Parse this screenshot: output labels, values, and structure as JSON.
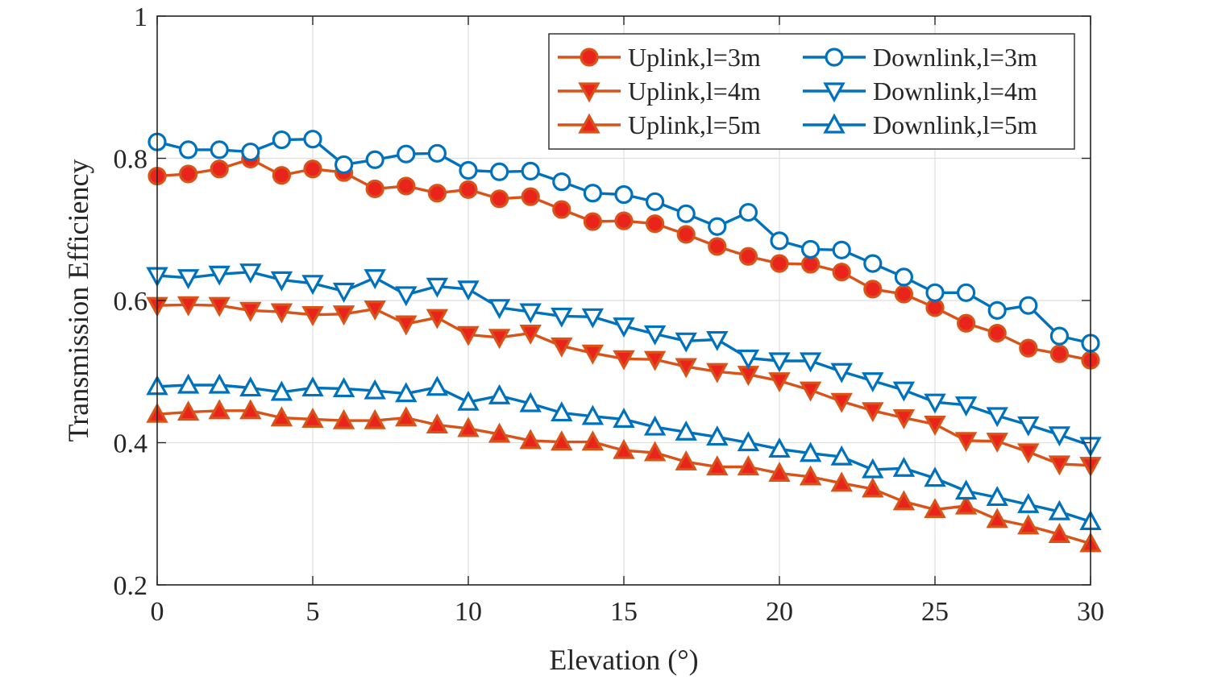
{
  "chart_data": {
    "type": "line",
    "title": "",
    "xlabel": "Elevation (°)",
    "ylabel": "Transmission Efficiency",
    "xlim": [
      0,
      30
    ],
    "ylim": [
      0.2,
      1
    ],
    "xticks": [
      0,
      5,
      10,
      15,
      20,
      25,
      30
    ],
    "xtick_labels": [
      "0",
      "5",
      "10",
      "15",
      "20",
      "25",
      "30"
    ],
    "yticks": [
      0.2,
      0.4,
      0.6,
      0.8,
      1
    ],
    "ytick_labels": [
      "0.2",
      "0.4",
      "0.6",
      "0.8",
      "1"
    ],
    "grid": true,
    "legend_position": "top-right",
    "x": [
      0,
      1,
      2,
      3,
      4,
      5,
      6,
      7,
      8,
      9,
      10,
      11,
      12,
      13,
      14,
      15,
      16,
      17,
      18,
      19,
      20,
      21,
      22,
      23,
      24,
      25,
      26,
      27,
      28,
      29,
      30
    ],
    "series": [
      {
        "name": "Uplink,l=3m",
        "color": "#D95319",
        "marker": "circle",
        "filled": true,
        "values": [
          0.775,
          0.778,
          0.785,
          0.799,
          0.776,
          0.785,
          0.78,
          0.757,
          0.761,
          0.751,
          0.756,
          0.743,
          0.746,
          0.728,
          0.711,
          0.712,
          0.708,
          0.693,
          0.676,
          0.662,
          0.652,
          0.651,
          0.64,
          0.616,
          0.609,
          0.59,
          0.568,
          0.554,
          0.533,
          0.525,
          0.516
        ]
      },
      {
        "name": "Uplink,l=4m",
        "color": "#D95319",
        "marker": "triangle-down",
        "filled": true,
        "values": [
          0.593,
          0.594,
          0.593,
          0.586,
          0.584,
          0.58,
          0.581,
          0.588,
          0.567,
          0.576,
          0.552,
          0.548,
          0.554,
          0.536,
          0.526,
          0.518,
          0.517,
          0.507,
          0.5,
          0.496,
          0.487,
          0.474,
          0.458,
          0.445,
          0.435,
          0.426,
          0.403,
          0.402,
          0.387,
          0.37,
          0.368
        ]
      },
      {
        "name": "Uplink,l=5m",
        "color": "#D95319",
        "marker": "triangle-up",
        "filled": true,
        "values": [
          0.44,
          0.443,
          0.445,
          0.445,
          0.435,
          0.433,
          0.431,
          0.431,
          0.435,
          0.425,
          0.42,
          0.412,
          0.403,
          0.401,
          0.401,
          0.389,
          0.386,
          0.373,
          0.366,
          0.366,
          0.357,
          0.352,
          0.343,
          0.335,
          0.317,
          0.306,
          0.311,
          0.292,
          0.283,
          0.271,
          0.258
        ]
      },
      {
        "name": "Downlink,l=3m",
        "color": "#0072BD",
        "marker": "circle",
        "filled": false,
        "values": [
          0.823,
          0.812,
          0.812,
          0.809,
          0.826,
          0.827,
          0.791,
          0.798,
          0.806,
          0.807,
          0.783,
          0.781,
          0.782,
          0.767,
          0.751,
          0.749,
          0.739,
          0.722,
          0.704,
          0.724,
          0.684,
          0.672,
          0.671,
          0.652,
          0.633,
          0.611,
          0.611,
          0.586,
          0.593,
          0.55,
          0.54
        ]
      },
      {
        "name": "Downlink,l=4m",
        "color": "#0072BD",
        "marker": "triangle-down",
        "filled": false,
        "values": [
          0.635,
          0.632,
          0.637,
          0.64,
          0.629,
          0.624,
          0.613,
          0.632,
          0.608,
          0.62,
          0.616,
          0.59,
          0.584,
          0.578,
          0.577,
          0.564,
          0.553,
          0.543,
          0.545,
          0.519,
          0.515,
          0.515,
          0.5,
          0.487,
          0.474,
          0.457,
          0.453,
          0.438,
          0.425,
          0.411,
          0.396
        ]
      },
      {
        "name": "Downlink,l=5m",
        "color": "#0072BD",
        "marker": "triangle-up",
        "filled": false,
        "values": [
          0.479,
          0.481,
          0.481,
          0.477,
          0.471,
          0.477,
          0.476,
          0.473,
          0.469,
          0.478,
          0.457,
          0.466,
          0.455,
          0.442,
          0.437,
          0.433,
          0.422,
          0.415,
          0.408,
          0.4,
          0.391,
          0.385,
          0.38,
          0.362,
          0.364,
          0.35,
          0.332,
          0.323,
          0.313,
          0.303,
          0.289
        ]
      }
    ]
  }
}
